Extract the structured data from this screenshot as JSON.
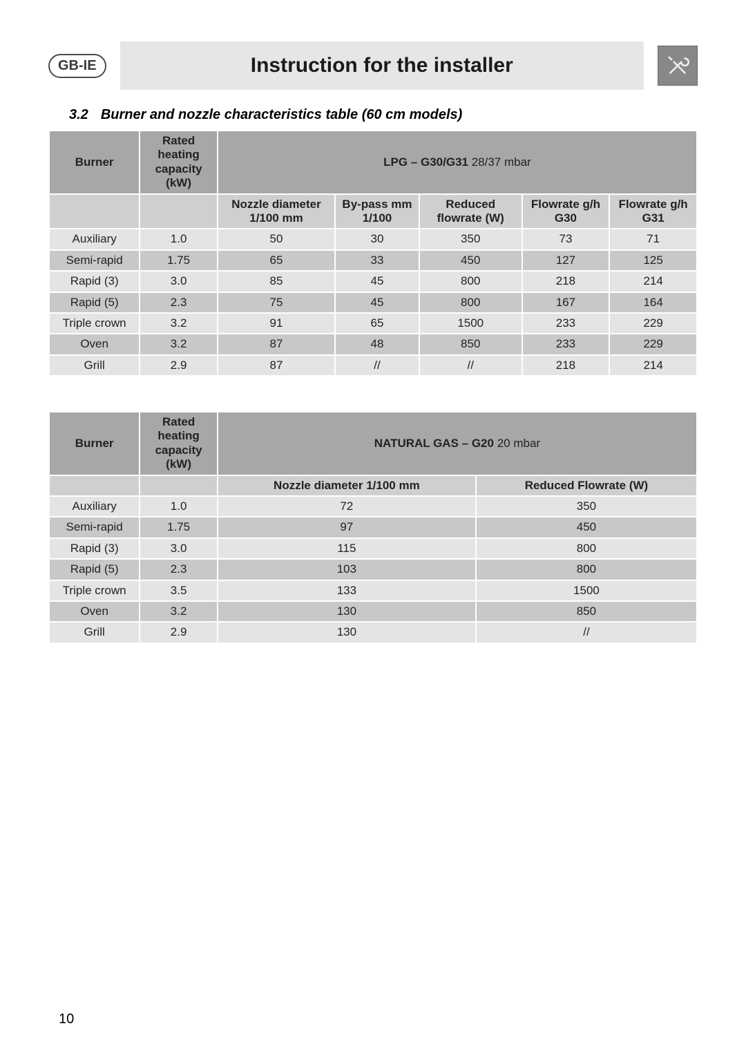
{
  "header": {
    "badge": "GB-IE",
    "title": "Instruction for the installer"
  },
  "section": {
    "number": "3.2",
    "title": "Burner and nozzle characteristics table (60 cm models)"
  },
  "page_number": "10",
  "colors": {
    "header_bar": "#e6e6e6",
    "cell_dark_header": "#a7a7a7",
    "cell_light_header": "#cfcfcf",
    "row_even": "#e4e4e4",
    "row_odd": "#c8c8c8",
    "border": "#ffffff"
  },
  "table1": {
    "col_burner": "Burner",
    "col_rated": "Rated heating capacity (kW)",
    "gas_title_bold": "LPG – G30/G31",
    "gas_title_rest": "  28/37 mbar",
    "sub": {
      "c0": "Nozzle diameter 1/100 mm",
      "c1": "By-pass mm 1/100",
      "c2": "Reduced flowrate (W)",
      "c3": "Flowrate g/h G30",
      "c4": "Flowrate g/h G31"
    },
    "rows": [
      {
        "name": "Auxiliary",
        "kw": "1.0",
        "v": [
          "50",
          "30",
          "350",
          "73",
          "71"
        ]
      },
      {
        "name": "Semi-rapid",
        "kw": "1.75",
        "v": [
          "65",
          "33",
          "450",
          "127",
          "125"
        ]
      },
      {
        "name": "Rapid (3)",
        "kw": "3.0",
        "v": [
          "85",
          "45",
          "800",
          "218",
          "214"
        ]
      },
      {
        "name": "Rapid (5)",
        "kw": "2.3",
        "v": [
          "75",
          "45",
          "800",
          "167",
          "164"
        ]
      },
      {
        "name": "Triple crown",
        "kw": "3.2",
        "v": [
          "91",
          "65",
          "1500",
          "233",
          "229"
        ]
      },
      {
        "name": "Oven",
        "kw": "3.2",
        "v": [
          "87",
          "48",
          "850",
          "233",
          "229"
        ]
      },
      {
        "name": "Grill",
        "kw": "2.9",
        "v": [
          "87",
          "//",
          "//",
          "218",
          "214"
        ]
      }
    ]
  },
  "table2": {
    "col_burner": "Burner",
    "col_rated": "Rated heating capacity (kW)",
    "gas_title_bold": "NATURAL GAS – G20",
    "gas_title_rest": "  20 mbar",
    "sub": {
      "c0": "Nozzle diameter 1/100 mm",
      "c1": "Reduced Flowrate (W)"
    },
    "rows": [
      {
        "name": "Auxiliary",
        "kw": "1.0",
        "v": [
          "72",
          "350"
        ]
      },
      {
        "name": "Semi-rapid",
        "kw": "1.75",
        "v": [
          "97",
          "450"
        ]
      },
      {
        "name": "Rapid (3)",
        "kw": "3.0",
        "v": [
          "115",
          "800"
        ]
      },
      {
        "name": "Rapid (5)",
        "kw": "2.3",
        "v": [
          "103",
          "800"
        ]
      },
      {
        "name": "Triple crown",
        "kw": "3.5",
        "v": [
          "133",
          "1500"
        ]
      },
      {
        "name": "Oven",
        "kw": "3.2",
        "v": [
          "130",
          "850"
        ]
      },
      {
        "name": "Grill",
        "kw": "2.9",
        "v": [
          "130",
          "//"
        ]
      }
    ]
  }
}
